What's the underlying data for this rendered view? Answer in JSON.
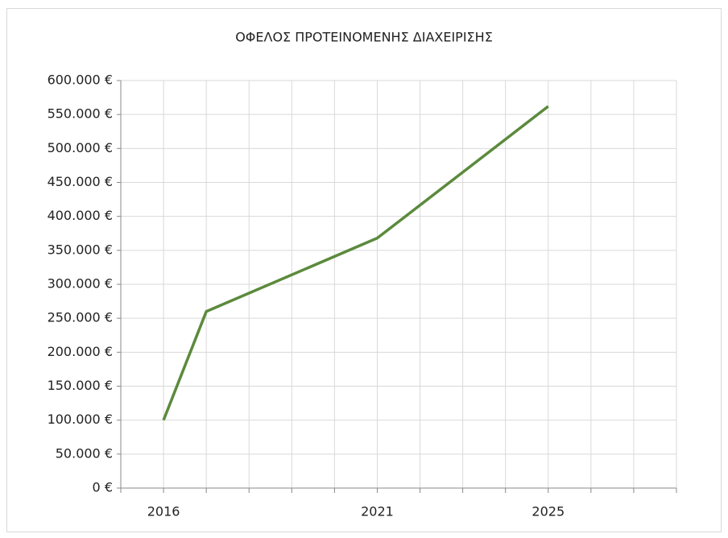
{
  "chart_data": {
    "type": "line",
    "title": "ΟΦΕΛΟΣ ΠΡΟΤΕΙΝΟΜΕΝΗΣ ΔΙΑΧΕΙΡΙΣΗΣ",
    "x": [
      2016,
      2017,
      2021,
      2025
    ],
    "series": [
      {
        "name": "ΟΦΕΛΟΣ",
        "color": "#5b8a3c",
        "values": [
          100000,
          260000,
          368000,
          562000
        ]
      }
    ],
    "xlim": [
      2015,
      2028
    ],
    "xticks": [
      2016,
      2021,
      2025
    ],
    "xgrid": [
      2015,
      2016,
      2017,
      2018,
      2019,
      2020,
      2021,
      2022,
      2023,
      2024,
      2025,
      2026,
      2027,
      2028
    ],
    "ylim": [
      0,
      600000
    ],
    "yticks": [
      {
        "value": 0,
        "label": "0 €"
      },
      {
        "value": 50000,
        "label": "50.000 €"
      },
      {
        "value": 100000,
        "label": "100.000 €"
      },
      {
        "value": 150000,
        "label": "150.000 €"
      },
      {
        "value": 200000,
        "label": "200.000 €"
      },
      {
        "value": 250000,
        "label": "250.000 €"
      },
      {
        "value": 300000,
        "label": "300.000 €"
      },
      {
        "value": 350000,
        "label": "350.000 €"
      },
      {
        "value": 400000,
        "label": "400.000 €"
      },
      {
        "value": 450000,
        "label": "450.000 €"
      },
      {
        "value": 500000,
        "label": "500.000 €"
      },
      {
        "value": 550000,
        "label": "550.000 €"
      },
      {
        "value": 600000,
        "label": "600.000 €"
      }
    ],
    "grid": true
  }
}
